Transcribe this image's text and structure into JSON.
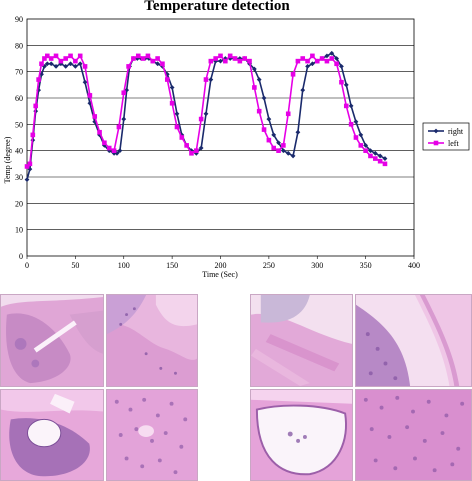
{
  "chart_data": {
    "type": "line",
    "title": "Temperature detection",
    "xlabel": "Time (Sec)",
    "ylabel": "Temp (degree)",
    "xlim": [
      0,
      400
    ],
    "ylim": [
      0,
      90
    ],
    "xticks": [
      0,
      50,
      100,
      150,
      200,
      250,
      300,
      350,
      400
    ],
    "yticks": [
      0,
      10,
      20,
      30,
      40,
      50,
      60,
      70,
      80,
      90
    ],
    "grid": "horizontal",
    "legend_position": "right",
    "series": [
      {
        "name": "right",
        "color": "#1a2a6c",
        "marker": "diamond",
        "x": [
          0,
          3,
          6,
          9,
          12,
          15,
          18,
          21,
          25,
          30,
          35,
          40,
          45,
          50,
          55,
          60,
          65,
          70,
          75,
          80,
          85,
          90,
          93,
          96,
          100,
          103,
          106,
          110,
          114,
          118,
          122,
          126,
          130,
          135,
          140,
          145,
          150,
          155,
          160,
          165,
          170,
          175,
          180,
          185,
          190,
          195,
          200,
          205,
          210,
          215,
          220,
          225,
          230,
          235,
          240,
          245,
          250,
          255,
          260,
          265,
          270,
          275,
          280,
          285,
          290,
          295,
          300,
          305,
          310,
          315,
          320,
          325,
          330,
          335,
          340,
          345,
          350,
          355,
          360,
          365,
          370
        ],
        "y": [
          29,
          33,
          44,
          55,
          63,
          69,
          72,
          73,
          73,
          72,
          73,
          72,
          73,
          72,
          73,
          66,
          58,
          51,
          46,
          42,
          40,
          39,
          39,
          40,
          52,
          63,
          72,
          75,
          75,
          75,
          75,
          75,
          74,
          73,
          72,
          69,
          64,
          54,
          46,
          42,
          40,
          39,
          41,
          54,
          67,
          74,
          74,
          75,
          75,
          75,
          75,
          75,
          73,
          71,
          67,
          60,
          52,
          46,
          43,
          40,
          39,
          38,
          47,
          63,
          72,
          73,
          74,
          75,
          76,
          77,
          75,
          72,
          65,
          57,
          51,
          46,
          42,
          40,
          39,
          38,
          37
        ]
      },
      {
        "name": "left",
        "color": "#e600e6",
        "marker": "square",
        "x": [
          0,
          3,
          6,
          9,
          12,
          15,
          18,
          21,
          25,
          30,
          35,
          40,
          45,
          50,
          55,
          60,
          65,
          70,
          75,
          80,
          85,
          90,
          95,
          100,
          105,
          110,
          115,
          120,
          125,
          130,
          135,
          140,
          145,
          150,
          155,
          160,
          165,
          170,
          175,
          180,
          185,
          190,
          195,
          200,
          205,
          210,
          215,
          220,
          225,
          230,
          235,
          240,
          245,
          250,
          255,
          260,
          265,
          270,
          275,
          280,
          285,
          290,
          295,
          300,
          305,
          310,
          315,
          320,
          325,
          330,
          335,
          340,
          345,
          350,
          355,
          360,
          365,
          370
        ],
        "y": [
          34,
          35,
          46,
          57,
          67,
          73,
          75,
          76,
          75,
          76,
          74,
          75,
          76,
          74,
          76,
          72,
          61,
          53,
          47,
          43,
          41,
          40,
          49,
          62,
          72,
          75,
          76,
          75,
          76,
          74,
          75,
          73,
          67,
          58,
          49,
          45,
          42,
          39,
          40,
          52,
          67,
          74,
          75,
          76,
          74,
          76,
          75,
          74,
          75,
          74,
          64,
          55,
          48,
          44,
          41,
          40,
          42,
          54,
          69,
          74,
          75,
          74,
          76,
          74,
          75,
          74,
          75,
          73,
          66,
          57,
          50,
          45,
          42,
          40,
          38,
          37,
          36,
          35
        ]
      }
    ]
  },
  "images": {
    "left_group": [
      "histology-panel-top-left",
      "histology-panel-top-right",
      "histology-panel-bottom-left",
      "histology-panel-bottom-right"
    ],
    "right_group": [
      "histology-panel-top-left",
      "histology-panel-top-right",
      "histology-panel-bottom-left",
      "histology-panel-bottom-right"
    ],
    "colors": {
      "tissue_pink": "#e6a8d8",
      "tissue_purple": "#8a5aa8",
      "background": "#f7eef6"
    }
  }
}
